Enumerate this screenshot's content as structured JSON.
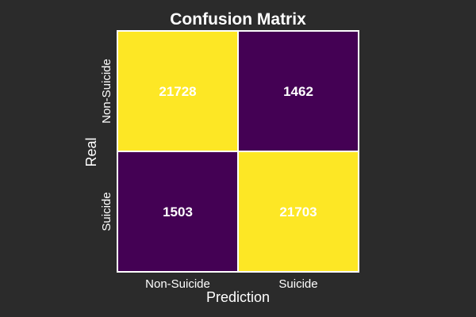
{
  "chart_data": {
    "type": "heatmap",
    "title": "Confusion Matrix",
    "xlabel": "Prediction",
    "ylabel": "Real",
    "x_categories": [
      "Non-Suicide",
      "Suicide"
    ],
    "y_categories": [
      "Non-Suicide",
      "Suicide"
    ],
    "values": [
      [
        21728,
        1462
      ],
      [
        1503,
        21703
      ]
    ],
    "colormap": "viridis",
    "colors": {
      "high": "#fde725",
      "low": "#440154",
      "background": "#2b2b2b",
      "cell_border": "#ffffff",
      "text": "#ffffff"
    },
    "colorbar": false,
    "grid": false
  }
}
